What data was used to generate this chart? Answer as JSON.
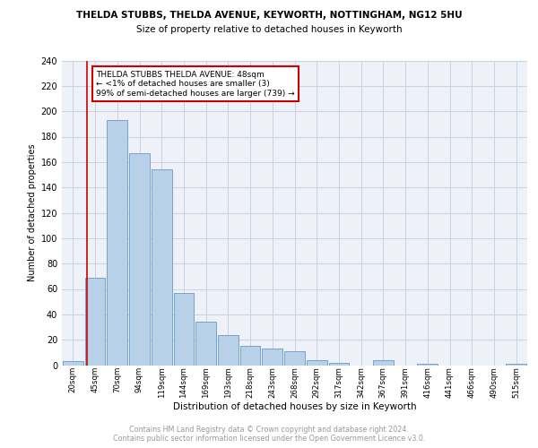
{
  "title1": "THELDA STUBBS, THELDA AVENUE, KEYWORTH, NOTTINGHAM, NG12 5HU",
  "title2": "Size of property relative to detached houses in Keyworth",
  "xlabel": "Distribution of detached houses by size in Keyworth",
  "ylabel": "Number of detached properties",
  "footer1": "Contains HM Land Registry data © Crown copyright and database right 2024.",
  "footer2": "Contains public sector information licensed under the Open Government Licence v3.0.",
  "bar_labels": [
    "20sqm",
    "45sqm",
    "70sqm",
    "94sqm",
    "119sqm",
    "144sqm",
    "169sqm",
    "193sqm",
    "218sqm",
    "243sqm",
    "268sqm",
    "292sqm",
    "317sqm",
    "342sqm",
    "367sqm",
    "391sqm",
    "416sqm",
    "441sqm",
    "466sqm",
    "490sqm",
    "515sqm"
  ],
  "bar_values": [
    3,
    69,
    193,
    167,
    154,
    57,
    34,
    24,
    15,
    13,
    11,
    4,
    2,
    0,
    4,
    0,
    1,
    0,
    0,
    0,
    1
  ],
  "bar_color": "#b8d0e8",
  "bar_edge_color": "#6699cc",
  "grid_color": "#c8d4e0",
  "background_color": "#eef2f8",
  "annotation_box_text": "THELDA STUBBS THELDA AVENUE: 48sqm\n← <1% of detached houses are smaller (3)\n99% of semi-detached houses are larger (739) →",
  "annotation_box_color": "#cc0000",
  "ylim": [
    0,
    240
  ],
  "yticks": [
    0,
    20,
    40,
    60,
    80,
    100,
    120,
    140,
    160,
    180,
    200,
    220,
    240
  ]
}
